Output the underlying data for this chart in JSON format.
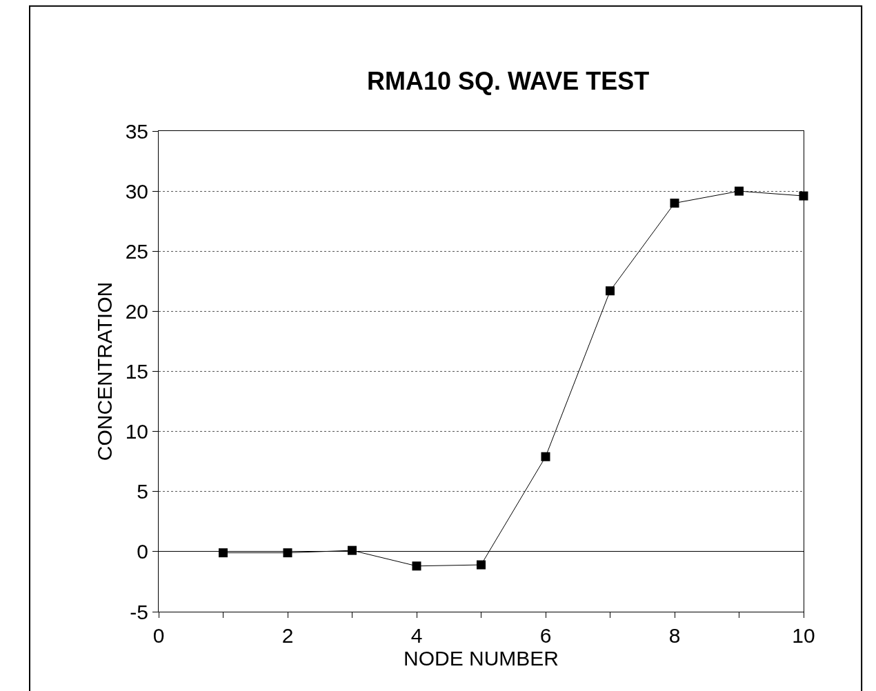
{
  "chart_data": {
    "type": "line",
    "title": "RMA10 SQ. WAVE TEST",
    "xlabel": "NODE NUMBER",
    "ylabel": "CONCENTRATION",
    "x": [
      1,
      2,
      3,
      4,
      5,
      6,
      7,
      8,
      9,
      10
    ],
    "series": [
      {
        "color": "#000000",
        "values": [
          -0.1,
          -0.1,
          0.1,
          -1.2,
          -1.1,
          7.9,
          21.7,
          29.0,
          30.0,
          29.6
        ]
      }
    ],
    "xlim": [
      0,
      10
    ],
    "xticks": [
      0,
      {
        "value": 1,
        "label": null
      },
      2,
      {
        "value": 3,
        "label": null
      },
      4,
      {
        "value": 5,
        "label": null
      },
      6,
      {
        "value": 7,
        "label": null
      },
      8,
      {
        "value": 9,
        "label": null
      },
      10
    ],
    "ylim": [
      -5,
      35
    ],
    "yticks": [
      -5,
      0,
      5,
      10,
      15,
      20,
      25,
      30,
      35
    ],
    "grid": "y",
    "marker": "square",
    "line_style": "solid"
  }
}
